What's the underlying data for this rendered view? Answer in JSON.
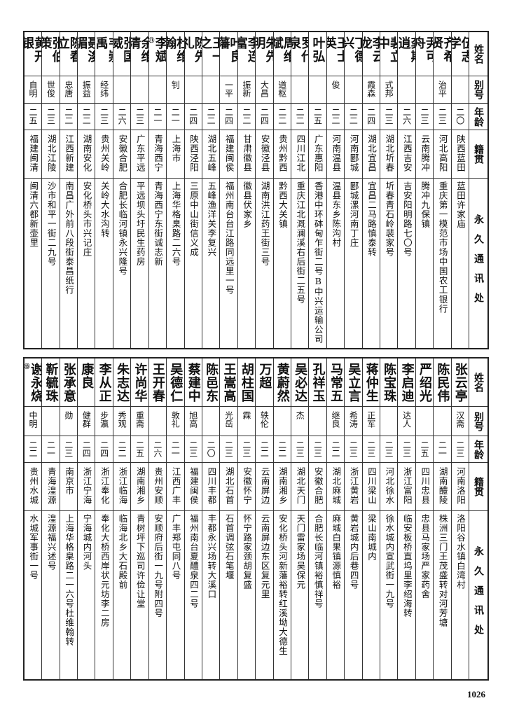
{
  "header": {
    "name": "姓名",
    "alias": "别号",
    "age": "年龄",
    "origin": "籍贯",
    "address": "永久通讯处"
  },
  "top": [
    {
      "name": "伍志学",
      "alias": "",
      "age": "二〇",
      "origin": "陕西蓝田",
      "address": "蓝田许家庙"
    },
    {
      "name": "齐希贤",
      "alias": "治平",
      "age": "二三",
      "origin": "河北高阳",
      "address": "重庆第一模范市场中国农工银行"
    },
    {
      "name": "尹可舟",
      "alias": "",
      "age": "二三",
      "origin": "云南腾冲",
      "address": "腾冲九保镇"
    },
    {
      "name": "龚期逍",
      "note": "⑩",
      "alias": "",
      "age": "二六",
      "origin": "江西吉安",
      "address": "吉安阳明路七〇号"
    },
    {
      "name": "裴立中",
      "alias": "式邦",
      "age": "二三",
      "origin": "湖北圻春",
      "address": "圻春青石岭裴家号"
    },
    {
      "name": "李云龙",
      "alias": "霞森",
      "age": "二四",
      "origin": "湖北宜昌",
      "address": "宜昌二马路慎泰转"
    },
    {
      "name": "丁德兴",
      "alias": "",
      "age": "二二",
      "origin": "河南郾城",
      "address": "郾城漯河南丁庄"
    },
    {
      "name": "王士英",
      "alias": "俊",
      "age": "二二",
      "origin": "河南温县",
      "address": "温县东乡陈沟村"
    },
    {
      "name": "叶弘",
      "alias": "",
      "age": "二五",
      "origin": "广东惠阳",
      "address": "香港中环砵甸乍街二号B中兴运输公司"
    },
    {
      "name": "罗代泉",
      "alias": "",
      "age": "二二",
      "origin": "四川江北",
      "address": "重庆江北溉澜溪右后街二五号"
    },
    {
      "name": "周维斌",
      "alias": "道枢",
      "age": "二二",
      "origin": "贵州黔西",
      "address": "黔西大关镇"
    },
    {
      "name": "朱先明",
      "alias": "大昌",
      "age": "二四",
      "origin": "安徽泾县",
      "address": "湖南洪江药王街三号"
    },
    {
      "name": "李连富",
      "alias": "振新",
      "age": "二二",
      "origin": "甘肃徽县",
      "address": "徽县伏家乡"
    },
    {
      "name": "叶良藩",
      "alias": "一平",
      "age": "二四",
      "origin": "福建闽侯",
      "address": "福州南台台江路同远里一号"
    },
    {
      "name": "王一之",
      "alias": "",
      "age": "二二",
      "origin": "湖北五峰",
      "address": "五峰渔洋关李复兴"
    },
    {
      "name": "陈先礼",
      "alias": "",
      "age": "二四",
      "origin": "陕西泾阳",
      "address": "三原中山街信义成"
    },
    {
      "name": "杜维翰",
      "alias": "钊",
      "age": "二一",
      "origin": "上海市",
      "address": "上海华格臬路二六号"
    },
    {
      "name": "李斌",
      "note": "⑪",
      "alias": "",
      "age": "二一",
      "origin": "青海西宁",
      "address": "青海西宁东街诚志新"
    },
    {
      "name": "余维清",
      "alias": "",
      "age": "二三",
      "origin": "广东平远",
      "address": "平远坝头圩民生药房"
    },
    {
      "name": "张国威",
      "alias": "",
      "age": "二六",
      "origin": "安徽合肥",
      "address": "合肥长临河镇永兴隆号"
    },
    {
      "name": "韦崇禹",
      "note": "⑫",
      "alias": "经纬",
      "age": "二三",
      "origin": "贵州关岭",
      "address": "关岭大水沟转"
    },
    {
      "name": "聂浚湄",
      "alias": "振益",
      "age": "二二",
      "origin": "湖南安化",
      "address": "安化桥头市兴记庄"
    },
    {
      "name": "陈春立",
      "alias": "忠唐",
      "age": "二二",
      "origin": "江西新建",
      "address": "南昌广外前八段街泰昌纸行"
    },
    {
      "name": "张伯策",
      "alias": "世俊",
      "age": "二三",
      "origin": "湖北江陵",
      "address": "沙市和平一街二九号"
    },
    {
      "name": "黄开银",
      "alias": "自明",
      "age": "二五",
      "origin": "福建闽清",
      "address": "闽清六都新壶里"
    }
  ],
  "bottom": [
    {
      "name": "张云亭",
      "alias": "汉斋",
      "age": "二三",
      "origin": "河南洛阳",
      "address": "洛阳谷水镇白湾村"
    },
    {
      "name": "陈民伟",
      "alias": "",
      "age": "二一",
      "origin": "湖南醴陵",
      "address": "株洲三门王茂盛转对河芳塘"
    },
    {
      "name": "严绍光",
      "alias": "",
      "age": "二五",
      "origin": "四川忠县",
      "address": "忠县马家场严家药舍"
    },
    {
      "name": "李启迪",
      "alias": "达人",
      "age": "二三",
      "origin": "浙江富阳",
      "address": "临安板桥直坞里李绍海转"
    },
    {
      "name": "陈宝珠",
      "alias": "",
      "age": "二三",
      "origin": "河北徐水",
      "address": "徐水城内宣武街一九号"
    },
    {
      "name": "蒋仲生",
      "alias": "正军",
      "age": "二三",
      "origin": "四川梁山",
      "address": "梁山南城内"
    },
    {
      "name": "吴立言",
      "alias": "希涛",
      "age": "二三",
      "origin": "浙江黄岩",
      "address": "黄岩城内后巷四号"
    },
    {
      "name": "马常五",
      "alias": "继良",
      "age": "二二",
      "origin": "湖北麻城",
      "address": "麻城白果镇源慎裕"
    },
    {
      "name": "孔祥玉",
      "alias": "",
      "age": "二三",
      "origin": "安徽合肥",
      "address": "合肥长临河镇裕慎祥号"
    },
    {
      "name": "吴必达",
      "alias": "杰",
      "age": "二三",
      "origin": "湖北天门",
      "address": "天门雷家场吴保元"
    },
    {
      "name": "黄蔚然",
      "alias": "",
      "age": "二二",
      "origin": "湖南湘乡",
      "address": "安化桥头河新藩裕转红溪坳大德生"
    },
    {
      "name": "万超",
      "alias": "轶伦",
      "age": "二二",
      "origin": "云南屏边",
      "address": "云南屏边东区复元里"
    },
    {
      "name": "胡柱国",
      "alias": "霖",
      "age": "二三",
      "origin": "安徽怀宁",
      "address": "怀宁路家颈胡复盛"
    },
    {
      "name": "王嵩高",
      "alias": "光岳",
      "age": "二三",
      "origin": "湖北石首",
      "address": "石首调弦石笔堰"
    },
    {
      "name": "陈邑东",
      "alias": "",
      "age": "二〇",
      "origin": "四川丰都",
      "address": "丰都永兴场转大溪口"
    },
    {
      "name": "蔡建中",
      "alias": "旭高",
      "age": "二三",
      "origin": "福建闽侯",
      "address": "福州南台夏醴泉四二号"
    },
    {
      "name": "吴德仁",
      "alias": "敦礼",
      "age": "二一",
      "origin": "江西广丰",
      "address": "广丰郑屯同八号"
    },
    {
      "name": "王开春",
      "alias": "",
      "age": "二六",
      "origin": "贵州安顺",
      "address": "安顺府后街一九号附四号"
    },
    {
      "name": "许尚华",
      "alias": "重斋",
      "age": "二五",
      "origin": "湖南湘乡",
      "address": "青树坪下巡司许俭让堂"
    },
    {
      "name": "朱志达",
      "alias": "秀观",
      "age": "二二",
      "origin": "浙江临海",
      "address": "临海北乡大石殿前"
    },
    {
      "name": "李从正",
      "alias": "步瀛",
      "age": "二四",
      "origin": "浙江奉化",
      "address": "奉化大桥西岸状元坊李二房"
    },
    {
      "name": "康良",
      "alias": "健群",
      "age": "二四",
      "origin": "浙江宁海",
      "address": "宁海城内河头"
    },
    {
      "name": "张承意",
      "alias": "勋",
      "age": "二三",
      "origin": "南京市",
      "address": "上海华格臬路二一六号杜维翰转"
    },
    {
      "name": "靳毓珠",
      "alias": "",
      "age": "二一",
      "origin": "青海湟源",
      "address": "湟源福兴述号"
    },
    {
      "name": "谢永烧",
      "note": "⑬",
      "alias": "中明",
      "age": "二二",
      "origin": "贵州水城",
      "address": "水城军事街一号"
    }
  ],
  "page_number": "1026"
}
